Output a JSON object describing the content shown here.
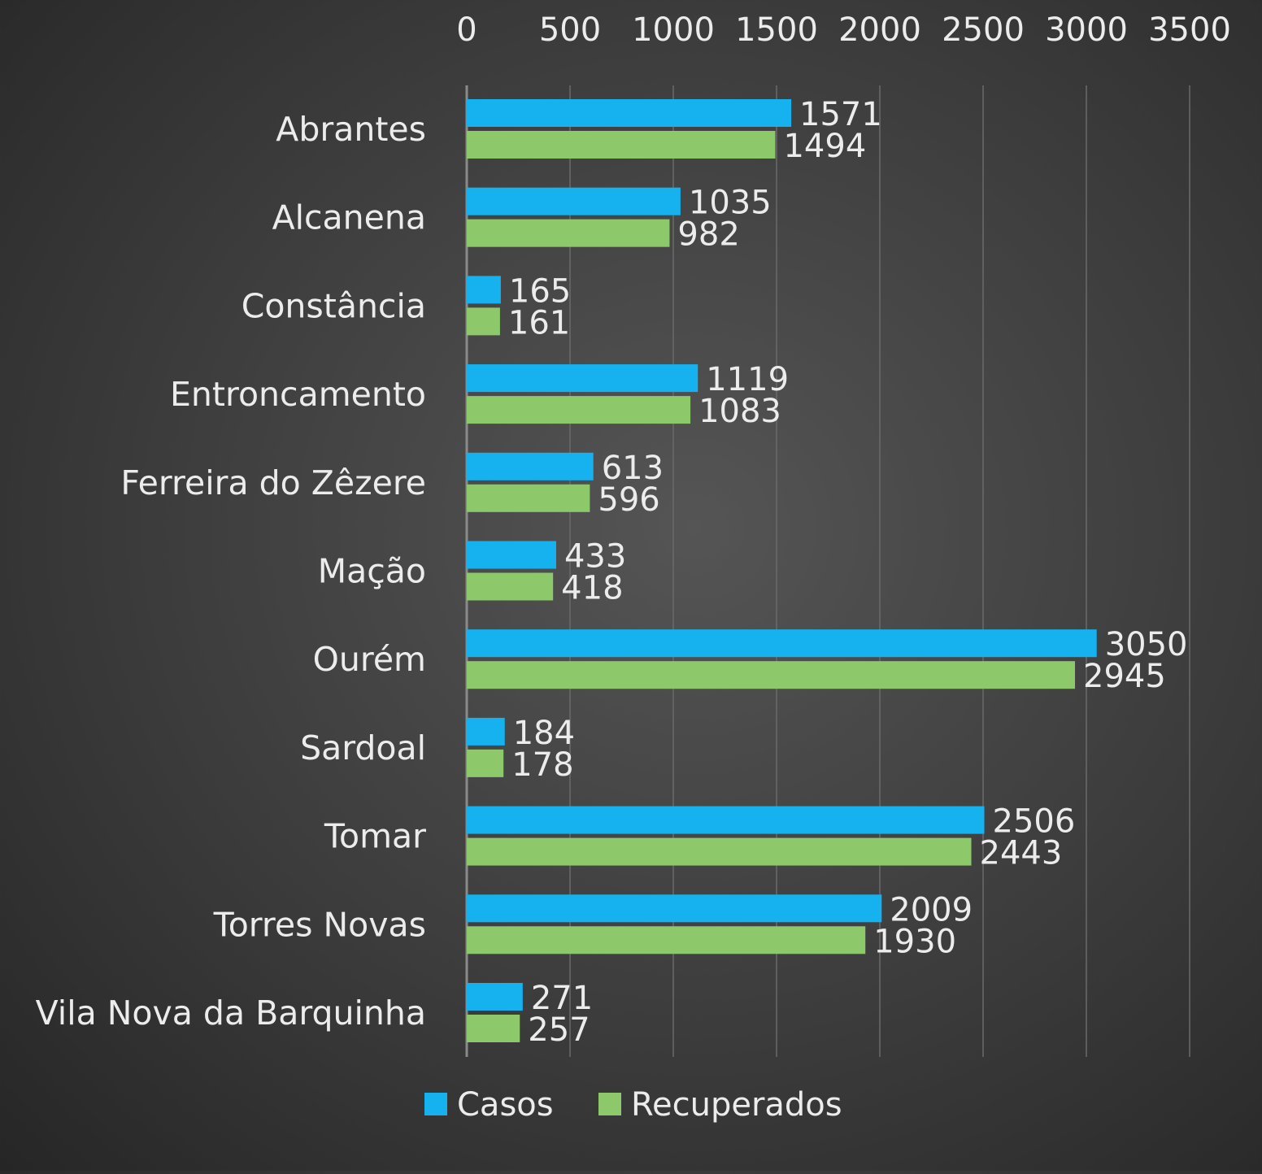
{
  "chart_data": {
    "type": "bar",
    "orientation": "horizontal",
    "categories": [
      "Abrantes",
      "Alcanena",
      "Constância",
      "Entroncamento",
      "Ferreira do Zêzere",
      "Mação",
      "Ourém",
      "Sardoal",
      "Tomar",
      "Torres Novas",
      "Vila Nova da Barquinha"
    ],
    "series": [
      {
        "name": "Casos",
        "color": "#16b1ef",
        "values": [
          1571,
          1035,
          165,
          1119,
          613,
          433,
          3050,
          184,
          2506,
          2009,
          271
        ]
      },
      {
        "name": "Recuperados",
        "color": "#8dc86a",
        "values": [
          1494,
          982,
          161,
          1083,
          596,
          418,
          2945,
          178,
          2443,
          1930,
          257
        ]
      }
    ],
    "x_ticks": [
      "0",
      "500",
      "1000",
      "1500",
      "2000",
      "2500",
      "3000",
      "3500"
    ],
    "xlim": [
      0,
      3500
    ],
    "x_axis_position": "top",
    "grid": true,
    "data_labels": true,
    "legend_position": "bottom"
  }
}
